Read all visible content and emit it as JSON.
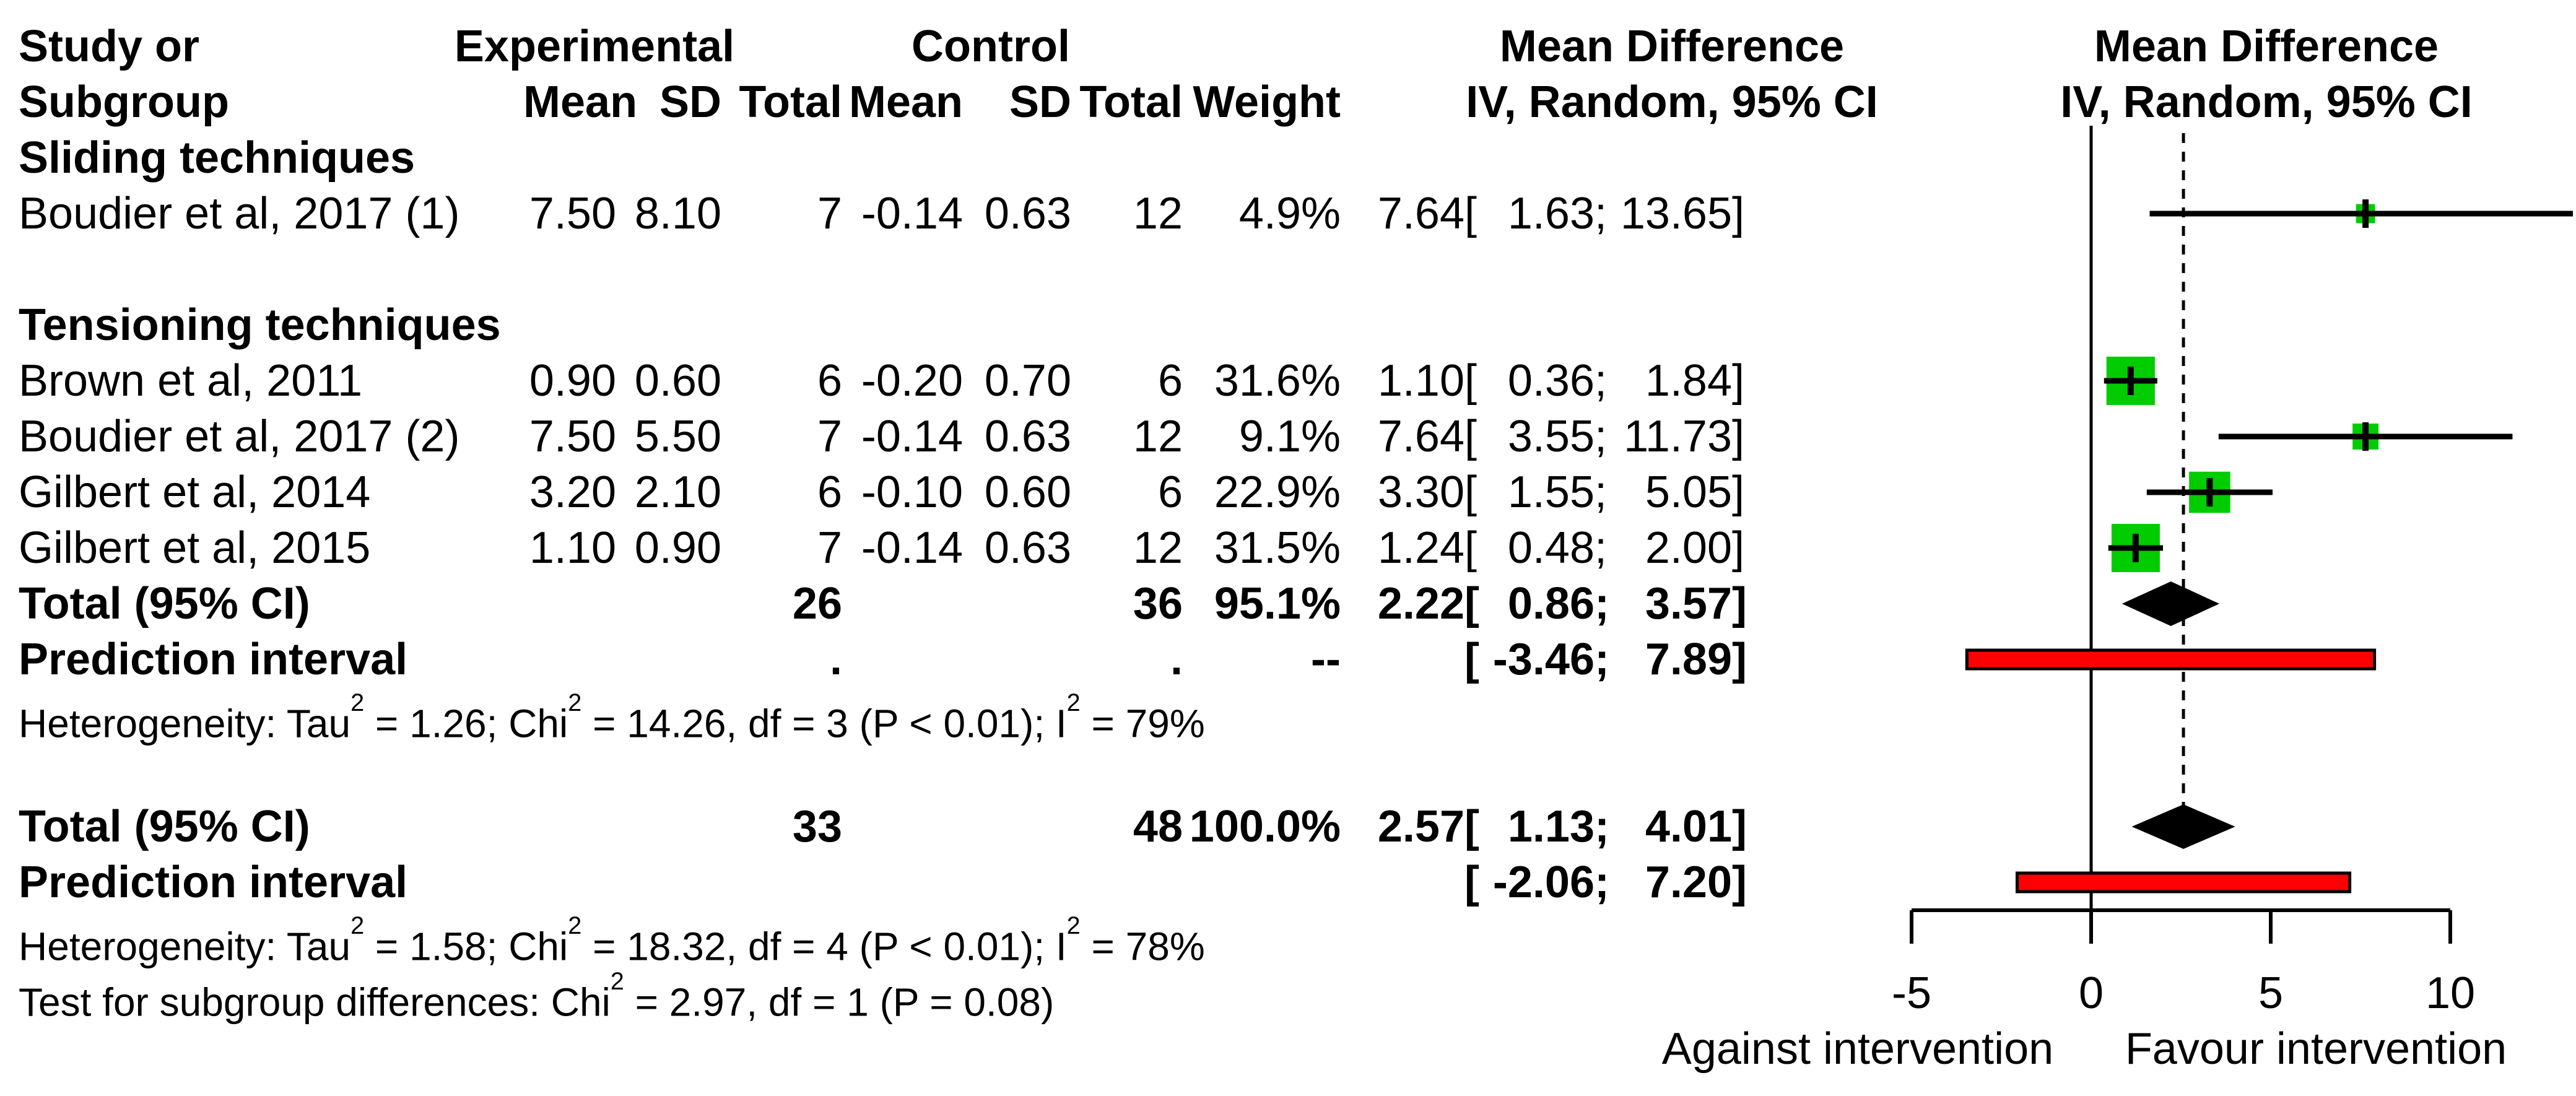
{
  "header": {
    "study_or": "Study or",
    "subgroup": "Subgroup",
    "experimental": "Experimental",
    "control": "Control",
    "mean_difference": "Mean Difference",
    "iv_random": "IV, Random, 95% CI",
    "cols": {
      "mean": "Mean",
      "sd": "SD",
      "total": "Total",
      "weight": "Weight"
    }
  },
  "table": {
    "rows": [
      {
        "style": "heading",
        "slot": 2,
        "label": "Sliding techniques"
      },
      {
        "style": "study",
        "slot": 3,
        "label": "Boudier et al, 2017 (1)",
        "mean_e": "7.50",
        "sd_e": "8.10",
        "total_e": "7",
        "mean_c": "-0.14",
        "sd_c": "0.63",
        "total_c": "12",
        "weight": "4.9%",
        "est": "7.64",
        "low": "1.63",
        "high": "13.65"
      },
      {
        "style": "heading",
        "slot": 5,
        "label": "Tensioning techniques"
      },
      {
        "style": "study",
        "slot": 6,
        "label": "Brown et al, 2011",
        "mean_e": "0.90",
        "sd_e": "0.60",
        "total_e": "6",
        "mean_c": "-0.20",
        "sd_c": "0.70",
        "total_c": "6",
        "weight": "31.6%",
        "est": "1.10",
        "low": "0.36",
        "high": "1.84"
      },
      {
        "style": "study",
        "slot": 7,
        "label": "Boudier et al, 2017 (2)",
        "mean_e": "7.50",
        "sd_e": "5.50",
        "total_e": "7",
        "mean_c": "-0.14",
        "sd_c": "0.63",
        "total_c": "12",
        "weight": "9.1%",
        "est": "7.64",
        "low": "3.55",
        "high": "11.73"
      },
      {
        "style": "study",
        "slot": 8,
        "label": "Gilbert et al, 2014",
        "mean_e": "3.20",
        "sd_e": "2.10",
        "total_e": "6",
        "mean_c": "-0.10",
        "sd_c": "0.60",
        "total_c": "6",
        "weight": "22.9%",
        "est": "3.30",
        "low": "1.55",
        "high": "5.05"
      },
      {
        "style": "study",
        "slot": 9,
        "label": "Gilbert et al, 2015",
        "mean_e": "1.10",
        "sd_e": "0.90",
        "total_e": "7",
        "mean_c": "-0.14",
        "sd_c": "0.63",
        "total_c": "12",
        "weight": "31.5%",
        "est": "1.24",
        "low": "0.48",
        "high": "2.00"
      },
      {
        "style": "total",
        "slot": 10,
        "label": "Total (95% CI)",
        "mean_e": "",
        "sd_e": "",
        "total_e": "26",
        "mean_c": "",
        "sd_c": "",
        "total_c": "36",
        "weight": "95.1%",
        "est": "2.22",
        "low": "0.86",
        "high": "3.57"
      },
      {
        "style": "pi",
        "slot": 11,
        "label": "Prediction interval",
        "mean_e": "",
        "sd_e": "",
        "total_e": ".",
        "mean_c": "",
        "sd_c": "",
        "total_c": ".",
        "weight": "--",
        "est": "",
        "low": "-3.46",
        "high": "7.89"
      },
      {
        "style": "footnote",
        "slot": 12,
        "label": "Heterogeneity: Tau² = 1.26; Chi² = 14.26, df = 3 (P < 0.01); I² = 79%"
      },
      {
        "style": "total",
        "slot": 14,
        "label": "Total (95% CI)",
        "mean_e": "",
        "sd_e": "",
        "total_e": "33",
        "mean_c": "",
        "sd_c": "",
        "total_c": "48",
        "weight": "100.0%",
        "est": "2.57",
        "low": "1.13",
        "high": "4.01"
      },
      {
        "style": "pi",
        "slot": 15,
        "label": "Prediction interval",
        "mean_e": "",
        "sd_e": "",
        "total_e": "",
        "mean_c": "",
        "sd_c": "",
        "total_c": "",
        "weight": "",
        "est": "",
        "low": "-2.06",
        "high": "7.20"
      },
      {
        "style": "footnote",
        "slot": 16,
        "label": "Heterogeneity: Tau² = 1.58; Chi² = 18.32, df = 4 (P < 0.01); I² = 78%"
      },
      {
        "style": "footnote",
        "slot": 17,
        "label": "Test for subgroup differences: Chi² = 2.97, df = 1 (P = 0.08)"
      }
    ]
  },
  "chart_data": {
    "type": "forest",
    "title_left": "Mean Difference",
    "title_right": "Mean Difference",
    "model": "IV, Random, 95% CI",
    "subgroups": [
      "Sliding techniques",
      "Tensioning techniques"
    ],
    "studies": [
      {
        "name": "Boudier et al, 2017 (1)",
        "group": "Sliding techniques",
        "mean_e": 7.5,
        "sd_e": 8.1,
        "n_e": 7,
        "mean_c": -0.14,
        "sd_c": 0.63,
        "n_c": 12,
        "weight_pct": 4.9,
        "md": 7.64,
        "ci": [
          1.63,
          13.65
        ],
        "slot": 3
      },
      {
        "name": "Brown et al, 2011",
        "group": "Tensioning techniques",
        "mean_e": 0.9,
        "sd_e": 0.6,
        "n_e": 6,
        "mean_c": -0.2,
        "sd_c": 0.7,
        "n_c": 6,
        "weight_pct": 31.6,
        "md": 1.1,
        "ci": [
          0.36,
          1.84
        ],
        "slot": 6
      },
      {
        "name": "Boudier et al, 2017 (2)",
        "group": "Tensioning techniques",
        "mean_e": 7.5,
        "sd_e": 5.5,
        "n_e": 7,
        "mean_c": -0.14,
        "sd_c": 0.63,
        "n_c": 12,
        "weight_pct": 9.1,
        "md": 7.64,
        "ci": [
          3.55,
          11.73
        ],
        "slot": 7
      },
      {
        "name": "Gilbert et al, 2014",
        "group": "Tensioning techniques",
        "mean_e": 3.2,
        "sd_e": 2.1,
        "n_e": 6,
        "mean_c": -0.1,
        "sd_c": 0.6,
        "n_c": 6,
        "weight_pct": 22.9,
        "md": 3.3,
        "ci": [
          1.55,
          5.05
        ],
        "slot": 8
      },
      {
        "name": "Gilbert et al, 2015",
        "group": "Tensioning techniques",
        "mean_e": 1.1,
        "sd_e": 0.9,
        "n_e": 7,
        "mean_c": -0.14,
        "sd_c": 0.63,
        "n_c": 12,
        "weight_pct": 31.5,
        "md": 1.24,
        "ci": [
          0.48,
          2.0
        ],
        "slot": 9
      }
    ],
    "subgroup_total": {
      "label": "Total (95% CI)",
      "n_e": 26,
      "n_c": 36,
      "weight_pct": 95.1,
      "md": 2.22,
      "ci": [
        0.86,
        3.57
      ],
      "slot": 10
    },
    "subgroup_prediction": {
      "label": "Prediction interval",
      "ci": [
        -3.46,
        7.89
      ],
      "slot": 11
    },
    "overall_total": {
      "label": "Total (95% CI)",
      "n_e": 33,
      "n_c": 48,
      "weight_pct": 100.0,
      "md": 2.57,
      "ci": [
        1.13,
        4.01
      ],
      "slot": 14
    },
    "overall_prediction": {
      "label": "Prediction interval",
      "ci": [
        -2.06,
        7.2
      ],
      "slot": 15
    },
    "heterogeneity_subgroup": "Tau² = 1.26; Chi² = 14.26, df = 3 (P < 0.01); I² = 79%",
    "heterogeneity_overall": "Tau² = 1.58; Chi² = 18.32, df = 4 (P < 0.01); I² = 78%",
    "subgroup_difference_test": "Chi² = 2.97, df = 1 (P = 0.08)",
    "axis": {
      "ticks": [
        -5,
        0,
        5,
        10
      ],
      "xlim": [
        -5,
        13.65
      ],
      "zero_line": 0,
      "overall_effect_line": 2.57,
      "left_label": "Against intervention",
      "right_label": "Favour intervention"
    },
    "colors": {
      "square": "#00CC00",
      "prediction_bar": "#FF0000",
      "diamond": "#000000",
      "line": "#000000"
    }
  }
}
